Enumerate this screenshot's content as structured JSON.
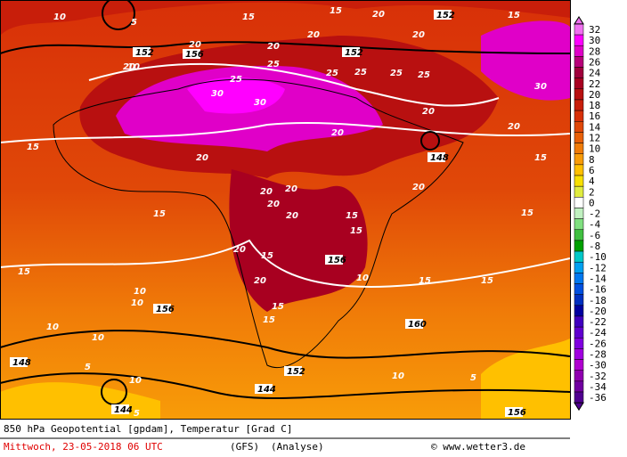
{
  "map": {
    "labels": [
      "10",
      "5",
      "15",
      "20",
      "20",
      "20",
      "156",
      "20",
      "152",
      "20",
      "10",
      "25",
      "30",
      "25",
      "30",
      "25",
      "152",
      "25",
      "25",
      "15",
      "20",
      "25",
      "20",
      "30",
      "148",
      "20",
      "15",
      "152",
      "20",
      "20",
      "15",
      "20",
      "20",
      "15",
      "15",
      "15",
      "10",
      "20",
      "20",
      "20",
      "15",
      "156",
      "20",
      "15",
      "15",
      "10",
      "156",
      "10",
      "15",
      "15",
      "10",
      "148",
      "5",
      "10",
      "144",
      "144",
      "5",
      "152",
      "15",
      "10",
      "5",
      "160",
      "156",
      "10",
      "20",
      "15",
      "15"
    ],
    "temperature_scale": {
      "labels": [
        "32",
        "30",
        "28",
        "26",
        "24",
        "22",
        "20",
        "18",
        "16",
        "14",
        "12",
        "10",
        "8",
        "6",
        "4",
        "2",
        "0",
        "-2",
        "-4",
        "-6",
        "-8",
        "-10",
        "-12",
        "-14",
        "-16",
        "-18",
        "-20",
        "-22",
        "-24",
        "-26",
        "-28",
        "-30",
        "-32",
        "-34",
        "-36"
      ],
      "colors": [
        "#f070f0",
        "#ff00ff",
        "#e000c8",
        "#b8007a",
        "#a0003c",
        "#a80020",
        "#b81010",
        "#c81e0a",
        "#d83008",
        "#e04808",
        "#e86008",
        "#f07c08",
        "#f89c08",
        "#ffc000",
        "#f8e000",
        "#e0ec40",
        "#ffffff",
        "#c0f0c0",
        "#80e080",
        "#40c040",
        "#00a000",
        "#00c8c8",
        "#00a0f0",
        "#0078f0",
        "#0050e0",
        "#0030c0",
        "#0000a0",
        "#4000c0",
        "#6000d0",
        "#8000e0",
        "#a000e0",
        "#b000d0",
        "#9000b0",
        "#7000a0",
        "#500090"
      ]
    }
  },
  "footer": {
    "title": "850 hPa Geopotential [gpdam], Temperatur [Grad C]",
    "date": "Mittwoch, 23-05-2018  06 UTC",
    "model": "(GFS)",
    "run": "(Analyse)",
    "credit": "© www.wetter3.de"
  }
}
